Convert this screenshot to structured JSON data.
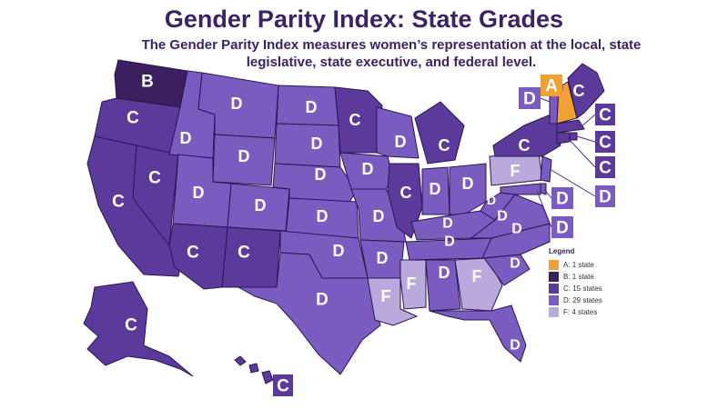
{
  "title": "Gender Parity Index: State Grades",
  "subtitle": "The Gender Parity Index measures women’s representation at the local, state legislative, state executive, and federal level.",
  "colors": {
    "A": "#f2a033",
    "B": "#3b1f5e",
    "C": "#5b3a9c",
    "D": "#7a5cc0",
    "F": "#b9a9dd",
    "border": "#2a1550"
  },
  "legend": {
    "title": "Legend",
    "items": [
      {
        "grade": "A",
        "label": "A: 1 state"
      },
      {
        "grade": "B",
        "label": "B: 1 state"
      },
      {
        "grade": "C",
        "label": "C: 15 states"
      },
      {
        "grade": "D",
        "label": "D: 29 states"
      },
      {
        "grade": "F",
        "label": "F: 4 states"
      }
    ]
  },
  "states": [
    {
      "name": "Washington",
      "grade": "B"
    },
    {
      "name": "Oregon",
      "grade": "C"
    },
    {
      "name": "California",
      "grade": "C"
    },
    {
      "name": "Nevada",
      "grade": "C"
    },
    {
      "name": "Idaho",
      "grade": "D"
    },
    {
      "name": "Montana",
      "grade": "D"
    },
    {
      "name": "Wyoming",
      "grade": "D"
    },
    {
      "name": "Utah",
      "grade": "D"
    },
    {
      "name": "Colorado",
      "grade": "D"
    },
    {
      "name": "Arizona",
      "grade": "C"
    },
    {
      "name": "New Mexico",
      "grade": "C"
    },
    {
      "name": "North Dakota",
      "grade": "D"
    },
    {
      "name": "South Dakota",
      "grade": "D"
    },
    {
      "name": "Nebraska",
      "grade": "D"
    },
    {
      "name": "Kansas",
      "grade": "D"
    },
    {
      "name": "Oklahoma",
      "grade": "D"
    },
    {
      "name": "Texas",
      "grade": "D"
    },
    {
      "name": "Minnesota",
      "grade": "C"
    },
    {
      "name": "Iowa",
      "grade": "D"
    },
    {
      "name": "Missouri",
      "grade": "D"
    },
    {
      "name": "Arkansas",
      "grade": "D"
    },
    {
      "name": "Louisiana",
      "grade": "F"
    },
    {
      "name": "Wisconsin",
      "grade": "D"
    },
    {
      "name": "Illinois",
      "grade": "C"
    },
    {
      "name": "Michigan",
      "grade": "C"
    },
    {
      "name": "Indiana",
      "grade": "D"
    },
    {
      "name": "Ohio",
      "grade": "D"
    },
    {
      "name": "Kentucky",
      "grade": "D"
    },
    {
      "name": "Tennessee",
      "grade": "D"
    },
    {
      "name": "Mississippi",
      "grade": "F"
    },
    {
      "name": "Alabama",
      "grade": "D"
    },
    {
      "name": "Georgia",
      "grade": "F"
    },
    {
      "name": "Florida",
      "grade": "D"
    },
    {
      "name": "South Carolina",
      "grade": "D"
    },
    {
      "name": "North Carolina",
      "grade": "D"
    },
    {
      "name": "Virginia",
      "grade": "D"
    },
    {
      "name": "West Virginia",
      "grade": "D"
    },
    {
      "name": "Pennsylvania",
      "grade": "F"
    },
    {
      "name": "New York",
      "grade": "C"
    },
    {
      "name": "Vermont",
      "grade": "D"
    },
    {
      "name": "New Hampshire",
      "grade": "A"
    },
    {
      "name": "Maine",
      "grade": "C"
    },
    {
      "name": "Massachusetts",
      "grade": "C"
    },
    {
      "name": "Rhode Island",
      "grade": "C"
    },
    {
      "name": "Connecticut",
      "grade": "C"
    },
    {
      "name": "New Jersey",
      "grade": "D"
    },
    {
      "name": "Delaware",
      "grade": "D"
    },
    {
      "name": "Maryland",
      "grade": "D"
    },
    {
      "name": "Alaska",
      "grade": "C"
    },
    {
      "name": "Hawaii",
      "grade": "C"
    }
  ]
}
